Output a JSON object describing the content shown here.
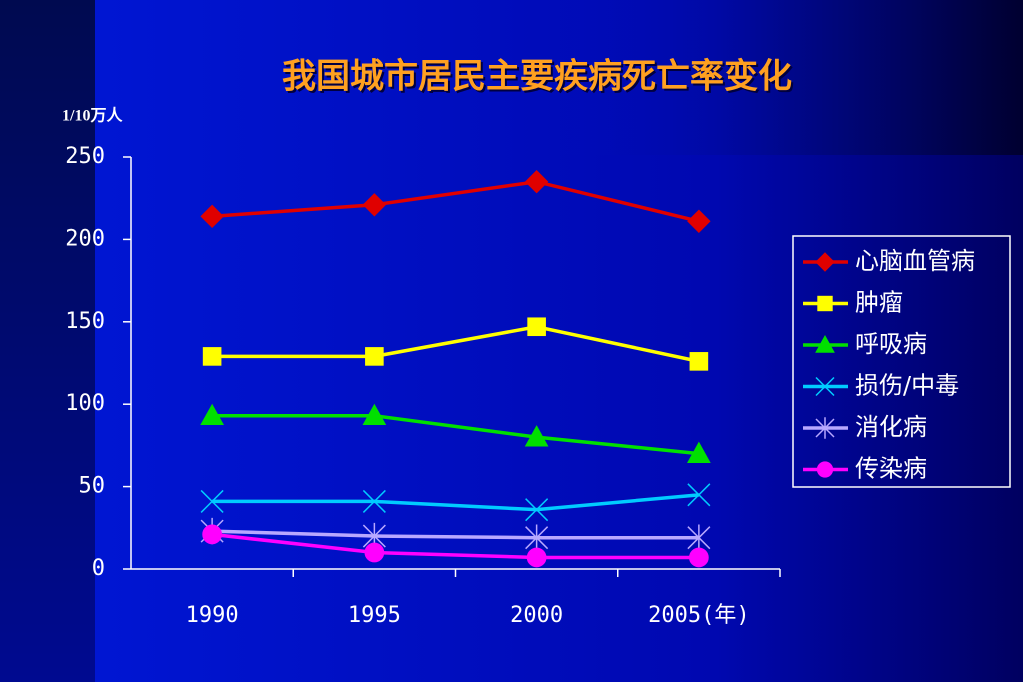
{
  "chart_data": {
    "type": "line",
    "title": "我国城市居民主要疾病死亡率变化",
    "y_label": "1/10万人",
    "categories": [
      "1990",
      "1995",
      "2000",
      "2005(年)"
    ],
    "ylim": [
      0,
      250
    ],
    "yticks": [
      0,
      50,
      100,
      150,
      200,
      250
    ],
    "legend": "right",
    "series": [
      {
        "name": "心脑血管病",
        "color": "#e00000",
        "marker": "diamond",
        "values": [
          214,
          221,
          235,
          211
        ]
      },
      {
        "name": "肿瘤",
        "color": "#ffff00",
        "marker": "square",
        "values": [
          129,
          129,
          147,
          126
        ]
      },
      {
        "name": "呼吸病",
        "color": "#00e000",
        "marker": "triangle",
        "values": [
          93,
          93,
          80,
          70
        ]
      },
      {
        "name": "损伤/中毒",
        "color": "#00ccff",
        "marker": "x",
        "values": [
          41,
          41,
          36,
          45
        ]
      },
      {
        "name": "消化病",
        "color": "#b8a8ff",
        "marker": "star",
        "values": [
          23,
          20,
          19,
          19
        ]
      },
      {
        "name": "传染病",
        "color": "#ff00ff",
        "marker": "circle",
        "values": [
          21,
          10,
          7,
          7
        ]
      }
    ]
  }
}
